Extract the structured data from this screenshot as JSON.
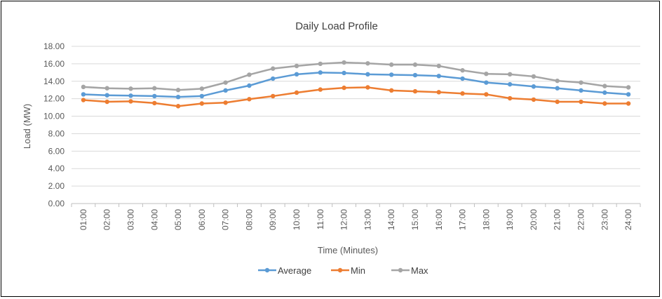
{
  "chart_data": {
    "type": "line",
    "title": "Daily Load Profile",
    "xlabel": "Time (Minutes)",
    "ylabel": "Load (MW)",
    "ylim": [
      0,
      18
    ],
    "ytick_step": 2,
    "ytick_labels": [
      "0.00",
      "2.00",
      "4.00",
      "6.00",
      "8.00",
      "10.00",
      "12.00",
      "14.00",
      "16.00",
      "18.00"
    ],
    "grid": true,
    "legend_position": "bottom",
    "categories": [
      "01:00",
      "02:00",
      "03:00",
      "04:00",
      "05:00",
      "06:00",
      "07:00",
      "08:00",
      "09:00",
      "10:00",
      "11:00",
      "12:00",
      "13:00",
      "14:00",
      "15:00",
      "16:00",
      "17:00",
      "18:00",
      "19:00",
      "20:00",
      "21:00",
      "22:00",
      "23:00",
      "24:00"
    ],
    "series": [
      {
        "name": "Average",
        "color": "#5B9BD5",
        "values": [
          12.5,
          12.4,
          12.35,
          12.3,
          12.2,
          12.3,
          12.95,
          13.5,
          14.3,
          14.8,
          15.0,
          14.95,
          14.8,
          14.75,
          14.7,
          14.6,
          14.3,
          13.85,
          13.65,
          13.4,
          13.2,
          12.95,
          12.7,
          12.5
        ]
      },
      {
        "name": "Min",
        "color": "#ED7D31",
        "values": [
          11.85,
          11.65,
          11.7,
          11.5,
          11.15,
          11.45,
          11.55,
          11.95,
          12.3,
          12.7,
          13.05,
          13.25,
          13.3,
          12.95,
          12.85,
          12.75,
          12.6,
          12.5,
          12.05,
          11.9,
          11.65,
          11.65,
          11.45,
          11.45
        ]
      },
      {
        "name": "Max",
        "color": "#A5A5A5",
        "values": [
          13.35,
          13.2,
          13.15,
          13.2,
          13.0,
          13.15,
          13.85,
          14.75,
          15.45,
          15.75,
          16.0,
          16.15,
          16.05,
          15.9,
          15.9,
          15.75,
          15.25,
          14.85,
          14.8,
          14.55,
          14.05,
          13.85,
          13.45,
          13.3
        ]
      }
    ]
  }
}
